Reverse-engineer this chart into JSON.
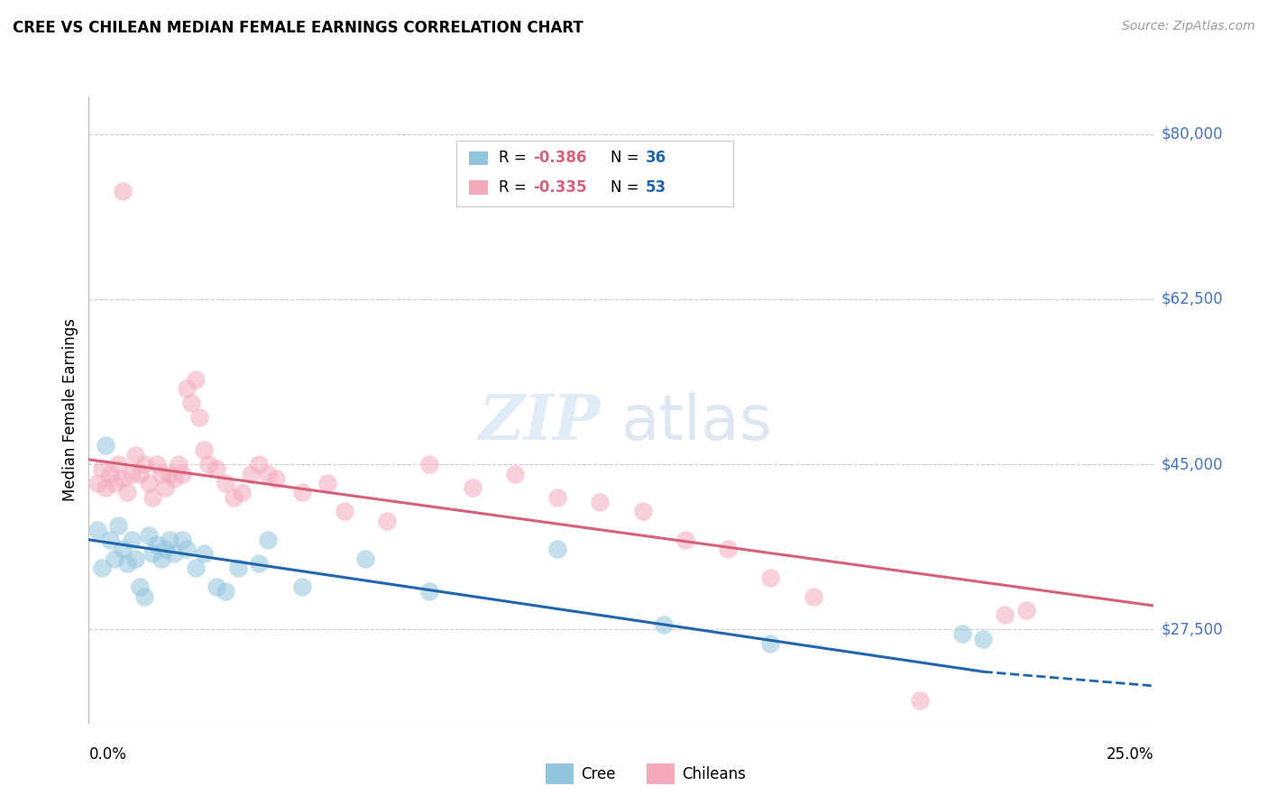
{
  "title": "CREE VS CHILEAN MEDIAN FEMALE EARNINGS CORRELATION CHART",
  "source": "Source: ZipAtlas.com",
  "ylabel": "Median Female Earnings",
  "yticks": [
    17500,
    27500,
    45000,
    62500,
    80000
  ],
  "ytick_labels": [
    "",
    "$27,500",
    "$45,000",
    "$62,500",
    "$80,000"
  ],
  "xmin": 0.0,
  "xmax": 0.25,
  "ymin": 17500,
  "ymax": 84000,
  "cree_color": "#92C5DE",
  "chilean_color": "#F4AABB",
  "cree_line_color": "#2166AC",
  "chilean_line_color": "#D6607A",
  "r_color": "#D6607A",
  "n_color": "#2166AC",
  "watermark_zip": "ZIP",
  "watermark_atlas": "atlas",
  "background_color": "#FFFFFF",
  "grid_color": "#CCCCCC",
  "cree_points": [
    [
      0.002,
      38000
    ],
    [
      0.003,
      34000
    ],
    [
      0.004,
      47000
    ],
    [
      0.005,
      37000
    ],
    [
      0.006,
      35000
    ],
    [
      0.007,
      38500
    ],
    [
      0.008,
      36000
    ],
    [
      0.009,
      34500
    ],
    [
      0.01,
      37000
    ],
    [
      0.011,
      35000
    ],
    [
      0.012,
      32000
    ],
    [
      0.013,
      31000
    ],
    [
      0.014,
      37500
    ],
    [
      0.015,
      35500
    ],
    [
      0.016,
      36500
    ],
    [
      0.017,
      35000
    ],
    [
      0.018,
      36000
    ],
    [
      0.019,
      37000
    ],
    [
      0.02,
      35500
    ],
    [
      0.022,
      37000
    ],
    [
      0.023,
      36000
    ],
    [
      0.025,
      34000
    ],
    [
      0.027,
      35500
    ],
    [
      0.03,
      32000
    ],
    [
      0.032,
      31500
    ],
    [
      0.035,
      34000
    ],
    [
      0.04,
      34500
    ],
    [
      0.042,
      37000
    ],
    [
      0.05,
      32000
    ],
    [
      0.065,
      35000
    ],
    [
      0.08,
      31500
    ],
    [
      0.11,
      36000
    ],
    [
      0.135,
      28000
    ],
    [
      0.16,
      26000
    ],
    [
      0.205,
      27000
    ],
    [
      0.21,
      26500
    ]
  ],
  "chilean_points": [
    [
      0.002,
      43000
    ],
    [
      0.003,
      44500
    ],
    [
      0.004,
      42500
    ],
    [
      0.005,
      44000
    ],
    [
      0.006,
      43000
    ],
    [
      0.007,
      45000
    ],
    [
      0.008,
      43500
    ],
    [
      0.009,
      42000
    ],
    [
      0.01,
      44000
    ],
    [
      0.011,
      46000
    ],
    [
      0.012,
      44000
    ],
    [
      0.013,
      45000
    ],
    [
      0.014,
      43000
    ],
    [
      0.015,
      41500
    ],
    [
      0.016,
      45000
    ],
    [
      0.017,
      44000
    ],
    [
      0.018,
      42500
    ],
    [
      0.019,
      44000
    ],
    [
      0.02,
      43500
    ],
    [
      0.021,
      45000
    ],
    [
      0.022,
      44000
    ],
    [
      0.023,
      53000
    ],
    [
      0.024,
      51500
    ],
    [
      0.025,
      54000
    ],
    [
      0.026,
      50000
    ],
    [
      0.027,
      46500
    ],
    [
      0.028,
      45000
    ],
    [
      0.03,
      44500
    ],
    [
      0.032,
      43000
    ],
    [
      0.034,
      41500
    ],
    [
      0.036,
      42000
    ],
    [
      0.038,
      44000
    ],
    [
      0.04,
      45000
    ],
    [
      0.042,
      44000
    ],
    [
      0.044,
      43500
    ],
    [
      0.05,
      42000
    ],
    [
      0.056,
      43000
    ],
    [
      0.06,
      40000
    ],
    [
      0.07,
      39000
    ],
    [
      0.08,
      45000
    ],
    [
      0.09,
      42500
    ],
    [
      0.1,
      44000
    ],
    [
      0.008,
      74000
    ],
    [
      0.11,
      41500
    ],
    [
      0.12,
      41000
    ],
    [
      0.13,
      40000
    ],
    [
      0.14,
      37000
    ],
    [
      0.15,
      36000
    ],
    [
      0.16,
      33000
    ],
    [
      0.17,
      31000
    ],
    [
      0.195,
      20000
    ],
    [
      0.215,
      29000
    ],
    [
      0.22,
      29500
    ]
  ]
}
